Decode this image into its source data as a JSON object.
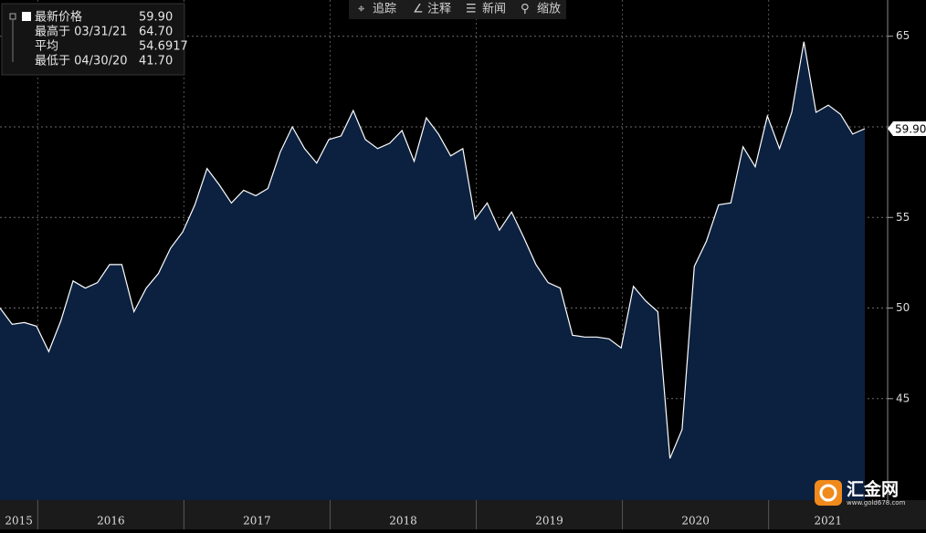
{
  "chart_data": {
    "type": "area",
    "legend": [
      {
        "name": "最新价格",
        "value": "59.90"
      },
      {
        "name": "最高于 03/31/21",
        "value": "64.70"
      },
      {
        "name": "平均",
        "value": "54.6917"
      },
      {
        "name": "最低于 04/30/20",
        "value": "41.70"
      }
    ],
    "toolbar": [
      "追踪",
      "注释",
      "新闻",
      "缩放"
    ],
    "last_label": "59.90",
    "watermark": "汇金网",
    "watermark_url": "www.gold678.com",
    "years": [
      "2015",
      "2016",
      "2017",
      "2018",
      "2019",
      "2020",
      "2021"
    ],
    "values": [
      50.0,
      49.1,
      49.2,
      49.0,
      47.6,
      49.3,
      51.5,
      51.1,
      51.4,
      52.4,
      52.4,
      49.8,
      51.1,
      51.9,
      53.3,
      54.2,
      55.7,
      57.7,
      56.8,
      55.8,
      56.5,
      56.2,
      56.6,
      58.6,
      60.0,
      58.8,
      58.0,
      59.3,
      59.5,
      60.9,
      59.3,
      58.8,
      59.1,
      59.8,
      58.1,
      60.5,
      59.6,
      58.4,
      58.8,
      54.9,
      55.8,
      54.3,
      55.3,
      53.9,
      52.4,
      51.4,
      51.1,
      48.5,
      48.4,
      48.4,
      48.3,
      47.8,
      51.2,
      50.4,
      49.8,
      41.7,
      43.3,
      52.3,
      53.7,
      55.7,
      55.8,
      58.9,
      57.8,
      60.6,
      58.8,
      60.8,
      64.7,
      60.8,
      61.2,
      60.7,
      59.6,
      59.9
    ],
    "color": "#0c2140",
    "line_color": "#ffffff",
    "ylim": [
      39.4,
      67
    ],
    "yticks": [
      45,
      50,
      55,
      60,
      65
    ],
    "grid": true
  }
}
